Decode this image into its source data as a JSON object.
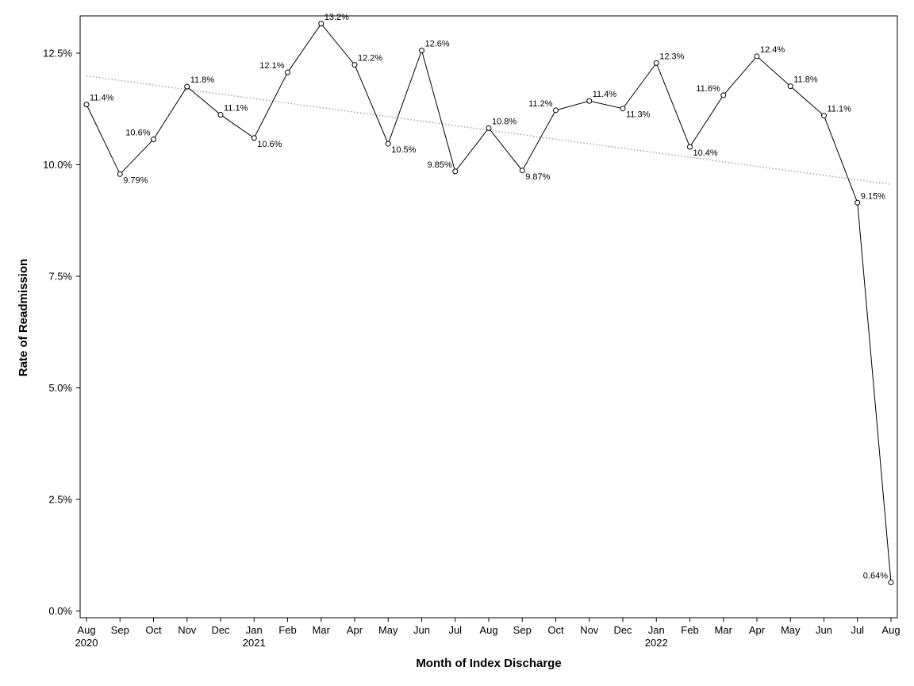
{
  "chart_data": {
    "type": "line",
    "xlabel": "Month of Index Discharge",
    "ylabel": "Rate of Readmission",
    "ylim": [
      0,
      13.35
    ],
    "yticks": [
      0,
      2.5,
      5.0,
      7.5,
      10.0,
      12.5
    ],
    "ytick_labels": [
      "0.0%",
      "2.5%",
      "5.0%",
      "7.5%",
      "10.0%",
      "12.5%"
    ],
    "grid": false,
    "legend": "none",
    "categories": [
      "Aug",
      "Sep",
      "Oct",
      "Nov",
      "Dec",
      "Jan",
      "Feb",
      "Mar",
      "Apr",
      "May",
      "Jun",
      "Jul",
      "Aug",
      "Sep",
      "Oct",
      "Nov",
      "Dec",
      "Jan",
      "Feb",
      "Mar",
      "Apr",
      "May",
      "Jun",
      "Jul",
      "Aug"
    ],
    "year_labels": [
      "2020",
      "",
      "",
      "",
      "",
      "2021",
      "",
      "",
      "",
      "",
      "",
      "",
      "",
      "",
      "",
      "",
      "",
      "2022",
      "",
      "",
      "",
      "",
      "",
      "",
      ""
    ],
    "values": [
      11.35,
      9.79,
      10.57,
      11.75,
      11.12,
      10.6,
      12.07,
      13.16,
      12.24,
      10.47,
      12.56,
      9.85,
      10.82,
      9.87,
      11.22,
      11.43,
      11.26,
      12.28,
      10.4,
      11.56,
      12.43,
      11.76,
      11.1,
      9.15,
      0.64
    ],
    "data_labels": [
      "11.4%",
      "9.79%",
      "10.6%",
      "11.8%",
      "11.1%",
      "10.6%",
      "12.1%",
      "13.2%",
      "12.2%",
      "10.5%",
      "12.6%",
      "9.85%",
      "10.8%",
      "9.87%",
      "11.2%",
      "11.4%",
      "11.3%",
      "12.3%",
      "10.4%",
      "11.6%",
      "12.4%",
      "11.8%",
      "11.1%",
      "9.15%",
      "0.64%"
    ],
    "label_positions": [
      "ur",
      "lr",
      "ul",
      "ur",
      "ur",
      "lr",
      "ul",
      "ur",
      "ur",
      "lr",
      "ur",
      "ul",
      "ur",
      "lr",
      "ul",
      "ur",
      "lr",
      "ur",
      "lr",
      "ul",
      "ur",
      "ur",
      "ur",
      "ur",
      "ul"
    ],
    "trend": {
      "style": "dotted",
      "color": "#999999",
      "start": 11.99,
      "end": 9.56
    },
    "line_color": "#000000",
    "marker": "open-circle"
  }
}
